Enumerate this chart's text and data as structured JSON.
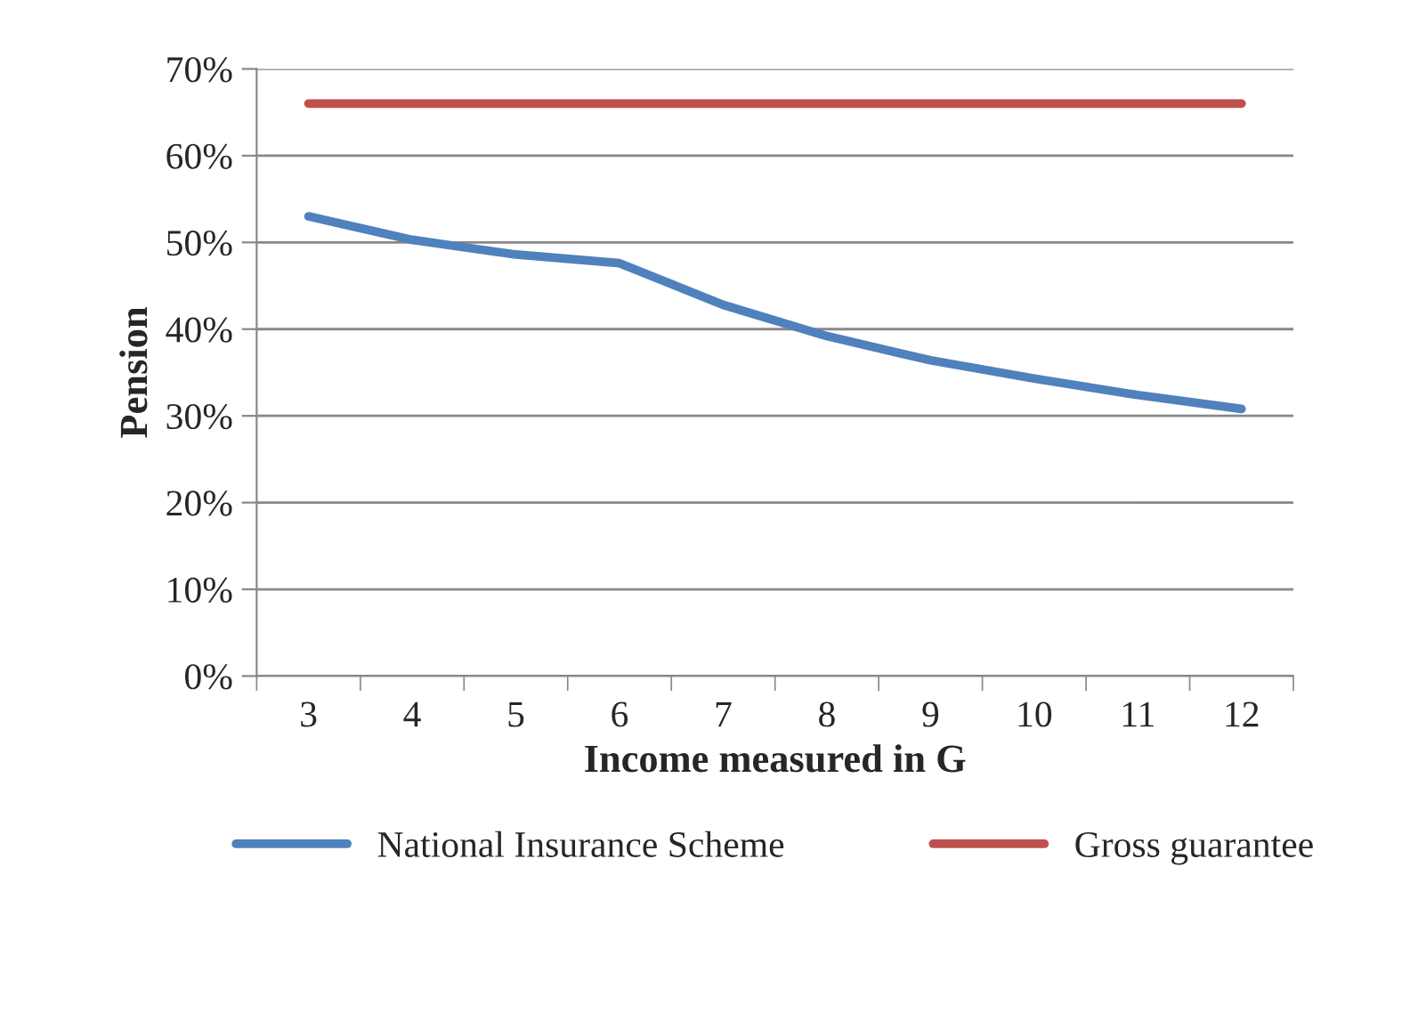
{
  "chart_data": {
    "type": "line",
    "xlabel": "Income measured in G",
    "ylabel": "Pension",
    "categories": [
      "3",
      "4",
      "5",
      "6",
      "7",
      "8",
      "9",
      "10",
      "11",
      "12"
    ],
    "series": [
      {
        "name": "National Insurance Scheme",
        "color": "#4f81bd",
        "values": [
          53,
          50.3,
          48.6,
          47.6,
          42.8,
          39.2,
          36.4,
          34.3,
          32.4,
          30.8
        ]
      },
      {
        "name": "Gross guarantee",
        "color": "#c0504d",
        "values": [
          66,
          66,
          66,
          66,
          66,
          66,
          66,
          66,
          66,
          66
        ]
      }
    ],
    "ylim": [
      0,
      70
    ],
    "yticks": [
      {
        "value": 0,
        "label": "0%"
      },
      {
        "value": 10,
        "label": "10%"
      },
      {
        "value": 20,
        "label": "20%"
      },
      {
        "value": 30,
        "label": "30%"
      },
      {
        "value": 40,
        "label": "40%"
      },
      {
        "value": 50,
        "label": "50%"
      },
      {
        "value": 60,
        "label": "60%"
      },
      {
        "value": 70,
        "label": "70%"
      }
    ],
    "grid": "y",
    "legend": "bottom",
    "marker": "none",
    "line_style": "solid"
  }
}
